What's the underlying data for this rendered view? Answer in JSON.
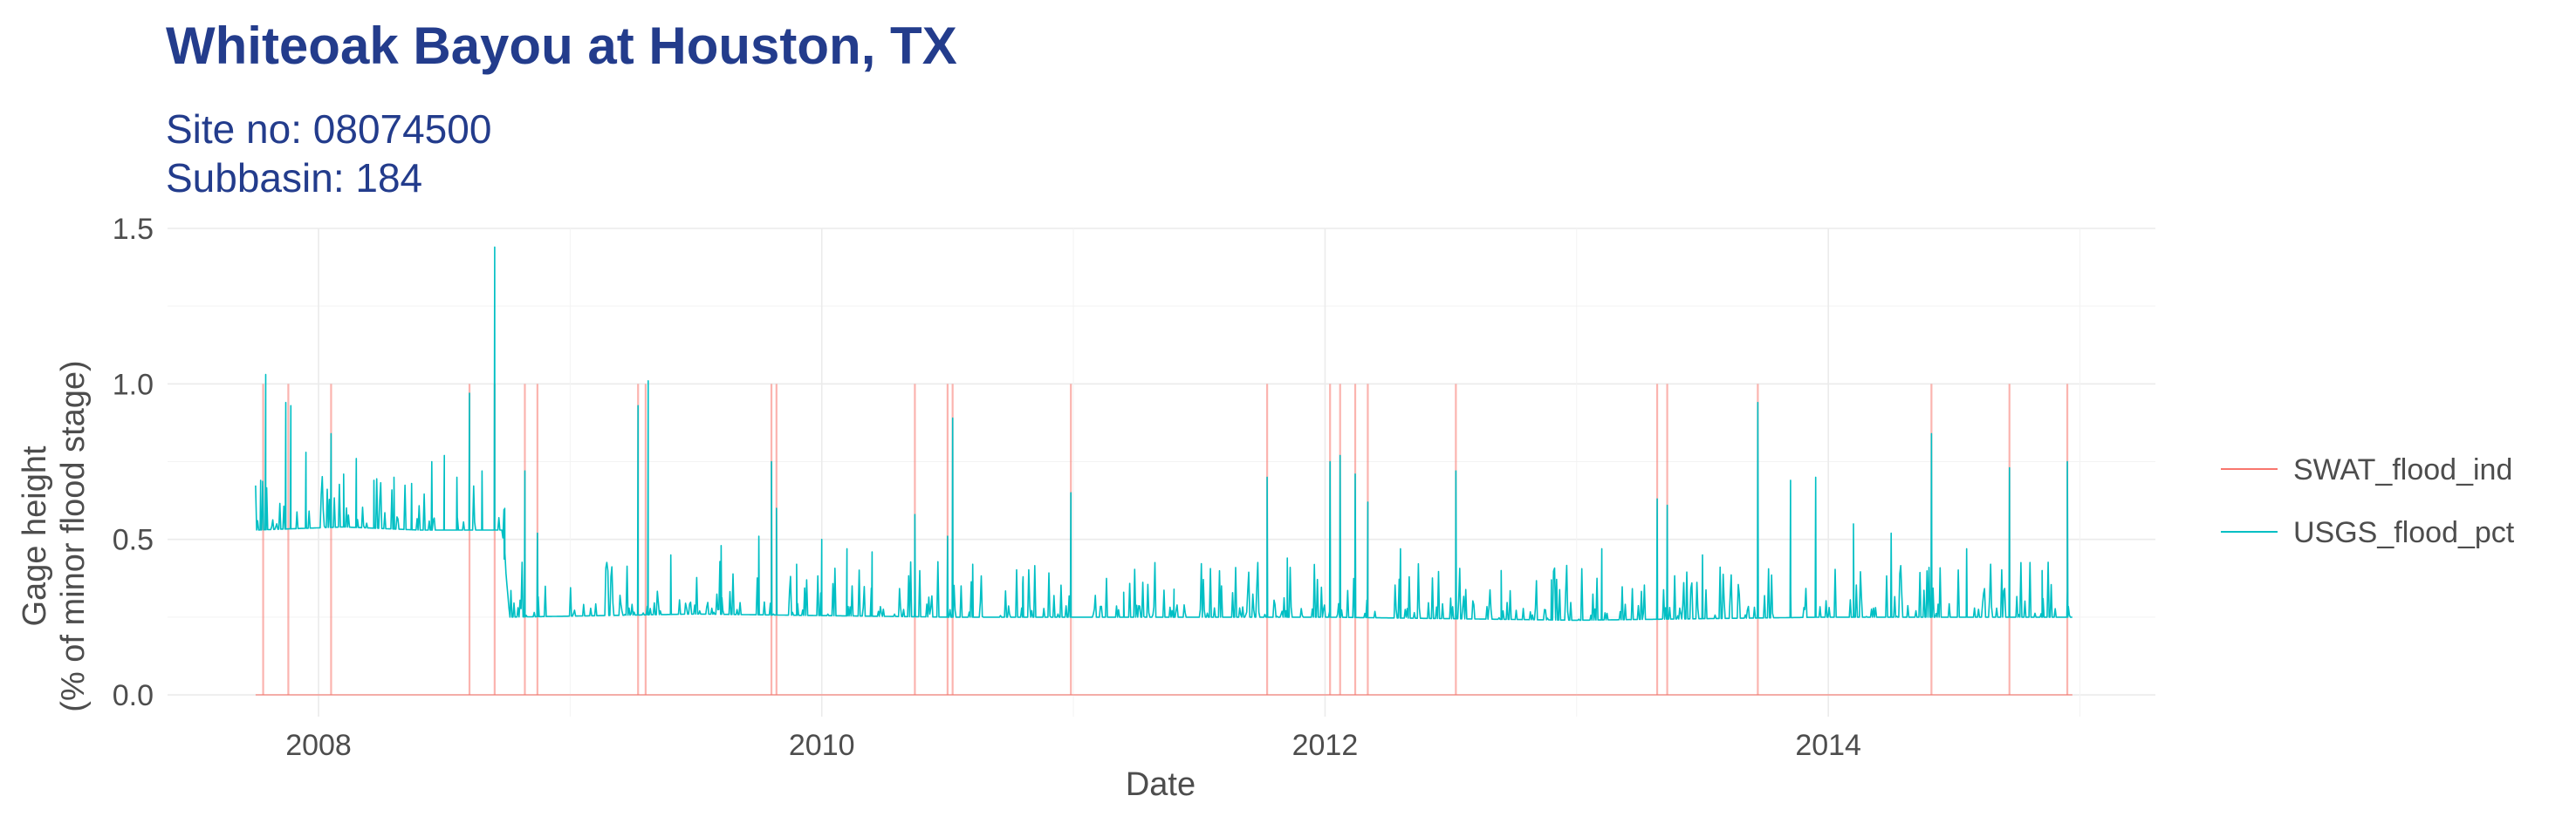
{
  "chart_data": {
    "type": "line",
    "title": "Whiteoak Bayou at Houston, TX",
    "subtitle_lines": [
      "Site no: 08074500",
      "Subbasin: 184"
    ],
    "xlabel": "Date",
    "ylabel_lines": [
      "Gage height",
      "(% of minor flood stage)"
    ],
    "x_ticks": [
      "2008",
      "2010",
      "2012",
      "2014"
    ],
    "x_tick_values": [
      2008,
      2010,
      2012,
      2014
    ],
    "xlim": [
      2007.4,
      2015.3
    ],
    "y_ticks": [
      "0.0",
      "0.5",
      "1.0",
      "1.5"
    ],
    "y_tick_values": [
      0,
      0.5,
      1.0,
      1.5
    ],
    "ylim": [
      -0.07,
      1.5
    ],
    "grid": true,
    "legend_position": "right",
    "series": [
      {
        "name": "SWAT_flood_ind",
        "color": "#F8766D",
        "x_range": [
          2007.75,
          2014.97
        ],
        "base_value": 0,
        "spike_value": 1,
        "spike_x": [
          2007.78,
          2007.88,
          2008.05,
          2008.6,
          2008.7,
          2008.82,
          2008.87,
          2009.27,
          2009.3,
          2009.8,
          2009.82,
          2010.37,
          2010.5,
          2010.52,
          2010.99,
          2011.77,
          2012.02,
          2012.06,
          2012.12,
          2012.17,
          2012.52,
          2013.32,
          2013.36,
          2013.72,
          2014.41,
          2014.72,
          2014.95
        ]
      },
      {
        "name": "USGS_flood_pct",
        "color": "#00BFC4",
        "baseline": [
          [
            2007.75,
            0.53
          ],
          [
            2008.1,
            0.54
          ],
          [
            2008.4,
            0.53
          ],
          [
            2008.73,
            0.53
          ],
          [
            2008.76,
            0.25
          ],
          [
            2009.5,
            0.26
          ],
          [
            2010.5,
            0.25
          ],
          [
            2011.0,
            0.25
          ],
          [
            2012.0,
            0.25
          ],
          [
            2013.0,
            0.24
          ],
          [
            2014.0,
            0.25
          ],
          [
            2014.97,
            0.25
          ]
        ],
        "peaks": [
          [
            2007.77,
            0.69
          ],
          [
            2007.79,
            1.03
          ],
          [
            2007.87,
            0.94
          ],
          [
            2007.89,
            0.93
          ],
          [
            2007.95,
            0.78
          ],
          [
            2008.05,
            0.84
          ],
          [
            2008.1,
            0.71
          ],
          [
            2008.15,
            0.76
          ],
          [
            2008.22,
            0.69
          ],
          [
            2008.3,
            0.7
          ],
          [
            2008.37,
            0.68
          ],
          [
            2008.45,
            0.75
          ],
          [
            2008.5,
            0.77
          ],
          [
            2008.55,
            0.7
          ],
          [
            2008.6,
            0.97
          ],
          [
            2008.65,
            0.72
          ],
          [
            2008.7,
            1.44
          ],
          [
            2008.74,
            0.6
          ],
          [
            2008.82,
            0.72
          ],
          [
            2008.87,
            0.52
          ],
          [
            2009.27,
            0.93
          ],
          [
            2009.31,
            1.01
          ],
          [
            2009.4,
            0.45
          ],
          [
            2009.6,
            0.48
          ],
          [
            2009.75,
            0.51
          ],
          [
            2009.8,
            0.75
          ],
          [
            2009.82,
            0.6
          ],
          [
            2009.9,
            0.42
          ],
          [
            2010.0,
            0.5
          ],
          [
            2010.1,
            0.47
          ],
          [
            2010.2,
            0.46
          ],
          [
            2010.37,
            0.58
          ],
          [
            2010.5,
            0.51
          ],
          [
            2010.52,
            0.89
          ],
          [
            2010.6,
            0.42
          ],
          [
            2010.8,
            0.38
          ],
          [
            2010.99,
            0.65
          ],
          [
            2011.2,
            0.33
          ],
          [
            2011.4,
            0.34
          ],
          [
            2011.77,
            0.7
          ],
          [
            2011.85,
            0.44
          ],
          [
            2012.02,
            0.75
          ],
          [
            2012.06,
            0.77
          ],
          [
            2012.12,
            0.71
          ],
          [
            2012.17,
            0.62
          ],
          [
            2012.3,
            0.47
          ],
          [
            2012.52,
            0.72
          ],
          [
            2012.7,
            0.4
          ],
          [
            2012.9,
            0.37
          ],
          [
            2013.1,
            0.47
          ],
          [
            2013.32,
            0.63
          ],
          [
            2013.36,
            0.61
          ],
          [
            2013.5,
            0.45
          ],
          [
            2013.72,
            0.94
          ],
          [
            2013.85,
            0.69
          ],
          [
            2013.95,
            0.7
          ],
          [
            2014.1,
            0.55
          ],
          [
            2014.25,
            0.52
          ],
          [
            2014.41,
            0.84
          ],
          [
            2014.55,
            0.47
          ],
          [
            2014.72,
            0.73
          ],
          [
            2014.85,
            0.4
          ],
          [
            2014.95,
            0.75
          ]
        ]
      }
    ]
  }
}
